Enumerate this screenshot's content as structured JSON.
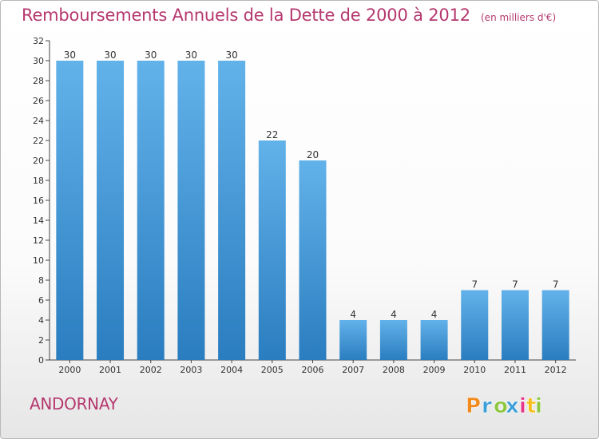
{
  "header": {
    "title": "Remboursements Annuels de la Dette de 2000 à 2012",
    "subtitle": "(en milliers d'€)"
  },
  "footer": {
    "commune": "ANDORNAY",
    "logo_text": "Proxiti"
  },
  "colors": {
    "accent": "#b5386e",
    "bar_top": "#62b2ea",
    "bar_bottom": "#2a7dbf",
    "logo_letters": [
      "#f08a1c",
      "#3a9fd8",
      "#8cc63f",
      "#3a9fd8",
      "#e8358a",
      "#f5c01a",
      "#8cc63f"
    ]
  },
  "chart_data": {
    "type": "bar",
    "categories": [
      "2000",
      "2001",
      "2002",
      "2003",
      "2004",
      "2005",
      "2006",
      "2007",
      "2008",
      "2009",
      "2010",
      "2011",
      "2012"
    ],
    "values": [
      30,
      30,
      30,
      30,
      30,
      22,
      20,
      4,
      4,
      4,
      7,
      7,
      7
    ],
    "title": "Remboursements Annuels de la Dette de 2000 à 2012",
    "ylim": [
      0,
      32
    ],
    "yticks": [
      0,
      2,
      4,
      6,
      8,
      10,
      12,
      14,
      16,
      18,
      20,
      22,
      24,
      26,
      28,
      30,
      32
    ],
    "grid": false
  }
}
